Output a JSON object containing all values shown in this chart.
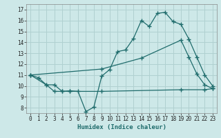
{
  "xlabel": "Humidex (Indice chaleur)",
  "bg_color": "#cde8e8",
  "grid_color": "#b0d0d0",
  "line_color": "#1e6b6b",
  "xlim": [
    -0.5,
    23.5
  ],
  "ylim": [
    7.5,
    17.5
  ],
  "xticks": [
    0,
    1,
    2,
    3,
    4,
    5,
    6,
    7,
    8,
    9,
    10,
    11,
    12,
    13,
    14,
    15,
    16,
    17,
    18,
    19,
    20,
    21,
    22,
    23
  ],
  "yticks": [
    8,
    9,
    10,
    11,
    12,
    13,
    14,
    15,
    16,
    17
  ],
  "line1_x": [
    0,
    1,
    2,
    3,
    4,
    5,
    6,
    7,
    8,
    9,
    10,
    11,
    12,
    13,
    14,
    15,
    16,
    17,
    18,
    19,
    20,
    21,
    22,
    23
  ],
  "line1_y": [
    11.0,
    10.75,
    10.1,
    10.1,
    9.5,
    9.55,
    9.5,
    7.65,
    8.05,
    10.9,
    11.5,
    13.15,
    13.3,
    14.35,
    16.0,
    15.45,
    16.65,
    16.75,
    15.9,
    15.65,
    14.3,
    12.65,
    11.0,
    10.0
  ],
  "line2_x": [
    0,
    9,
    14,
    19,
    20,
    21,
    22,
    23
  ],
  "line2_y": [
    11.0,
    11.55,
    12.55,
    14.2,
    12.65,
    11.1,
    10.1,
    9.75
  ],
  "line3_x": [
    0,
    2,
    3,
    4,
    5,
    9,
    19,
    22,
    23
  ],
  "line3_y": [
    11.0,
    10.1,
    9.5,
    9.5,
    9.5,
    9.5,
    9.65,
    9.65,
    9.75
  ]
}
